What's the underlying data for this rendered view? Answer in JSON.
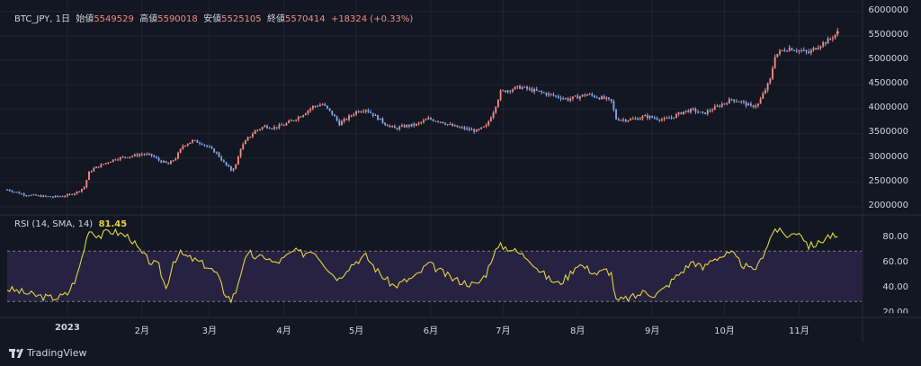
{
  "header": {
    "symbol": "BTC_JPY, 1日",
    "open_label": "始値",
    "open_value": "5549529",
    "high_label": "高値",
    "high_value": "5590018",
    "low_label": "安値",
    "low_value": "5525105",
    "close_label": "終値",
    "close_value": "5570414",
    "change": "+18324 (+0.33%)"
  },
  "rsi": {
    "title": "RSI (14, SMA, 14)",
    "value": "81.45"
  },
  "branding": {
    "name": "TradingView"
  },
  "colors": {
    "up": "#f28b82",
    "down": "#7fa7f0",
    "rsi_line": "#e3d33b",
    "rsi_band": "#2a2446",
    "background": "#131722",
    "grid": "#1f2433"
  },
  "chart_data": [
    {
      "type": "candlestick",
      "title": "BTC_JPY, 1日",
      "x_ticks": [
        "2023",
        "2月",
        "3月",
        "4月",
        "5月",
        "6月",
        "7月",
        "8月",
        "9月",
        "10月",
        "11月"
      ],
      "y_ticks": [
        "6000000",
        "5500000",
        "5000000",
        "4500000",
        "4000000",
        "3500000",
        "3000000",
        "2500000",
        "2000000"
      ],
      "ylim": [
        1850000,
        6050000
      ],
      "x_range_days": [
        -25,
        330
      ],
      "x_tick_days": [
        0,
        31,
        59,
        90,
        120,
        151,
        181,
        212,
        243,
        273,
        304
      ],
      "close_series": [
        [
          -25,
          2350000
        ],
        [
          -18,
          2250000
        ],
        [
          -12,
          2220000
        ],
        [
          -6,
          2200000
        ],
        [
          0,
          2230000
        ],
        [
          4,
          2300000
        ],
        [
          7,
          2400000
        ],
        [
          9,
          2700000
        ],
        [
          11,
          2780000
        ],
        [
          14,
          2850000
        ],
        [
          17,
          2920000
        ],
        [
          20,
          2980000
        ],
        [
          24,
          3020000
        ],
        [
          28,
          3050000
        ],
        [
          31,
          3080000
        ],
        [
          35,
          3050000
        ],
        [
          38,
          2950000
        ],
        [
          42,
          2870000
        ],
        [
          45,
          3000000
        ],
        [
          48,
          3250000
        ],
        [
          52,
          3350000
        ],
        [
          56,
          3300000
        ],
        [
          59,
          3200000
        ],
        [
          62,
          3100000
        ],
        [
          65,
          2900000
        ],
        [
          68,
          2750000
        ],
        [
          70,
          2850000
        ],
        [
          72,
          3200000
        ],
        [
          75,
          3400000
        ],
        [
          78,
          3550000
        ],
        [
          82,
          3650000
        ],
        [
          86,
          3620000
        ],
        [
          90,
          3680000
        ],
        [
          94,
          3780000
        ],
        [
          98,
          3900000
        ],
        [
          102,
          4050000
        ],
        [
          106,
          4100000
        ],
        [
          110,
          3900000
        ],
        [
          113,
          3700000
        ],
        [
          116,
          3800000
        ],
        [
          120,
          3950000
        ],
        [
          124,
          4000000
        ],
        [
          128,
          3850000
        ],
        [
          132,
          3700000
        ],
        [
          136,
          3600000
        ],
        [
          140,
          3650000
        ],
        [
          145,
          3680000
        ],
        [
          150,
          3800000
        ],
        [
          155,
          3750000
        ],
        [
          160,
          3650000
        ],
        [
          165,
          3600000
        ],
        [
          170,
          3550000
        ],
        [
          174,
          3650000
        ],
        [
          177,
          3950000
        ],
        [
          180,
          4350000
        ],
        [
          184,
          4400000
        ],
        [
          188,
          4450000
        ],
        [
          192,
          4400000
        ],
        [
          196,
          4350000
        ],
        [
          200,
          4300000
        ],
        [
          204,
          4250000
        ],
        [
          208,
          4200000
        ],
        [
          212,
          4250000
        ],
        [
          216,
          4300000
        ],
        [
          220,
          4250000
        ],
        [
          224,
          4200000
        ],
        [
          226,
          4150000
        ],
        [
          228,
          3800000
        ],
        [
          232,
          3780000
        ],
        [
          236,
          3800000
        ],
        [
          240,
          3850000
        ],
        [
          244,
          3820000
        ],
        [
          248,
          3780000
        ],
        [
          252,
          3850000
        ],
        [
          256,
          3950000
        ],
        [
          260,
          3980000
        ],
        [
          264,
          3900000
        ],
        [
          268,
          4000000
        ],
        [
          272,
          4100000
        ],
        [
          276,
          4200000
        ],
        [
          280,
          4150000
        ],
        [
          284,
          4050000
        ],
        [
          287,
          4100000
        ],
        [
          290,
          4400000
        ],
        [
          292,
          4600000
        ],
        [
          294,
          5100000
        ],
        [
          297,
          5200000
        ],
        [
          300,
          5250000
        ],
        [
          304,
          5200000
        ],
        [
          308,
          5150000
        ],
        [
          312,
          5300000
        ],
        [
          316,
          5400000
        ],
        [
          320,
          5570414
        ]
      ]
    },
    {
      "type": "line",
      "title": "RSI (14, SMA, 14)",
      "y_ticks": [
        "80.00",
        "60.00",
        "40.00",
        "20.00"
      ],
      "ylim": [
        18,
        98
      ],
      "bands": [
        30,
        70
      ],
      "series": [
        {
          "values": [
            [
              -25,
              40
            ],
            [
              -20,
              38
            ],
            [
              -14,
              35
            ],
            [
              -8,
              33
            ],
            [
              -4,
              33
            ],
            [
              0,
              36
            ],
            [
              4,
              50
            ],
            [
              7,
              72
            ],
            [
              9,
              88
            ],
            [
              11,
              84
            ],
            [
              14,
              82
            ],
            [
              17,
              86
            ],
            [
              20,
              85
            ],
            [
              23,
              83
            ],
            [
              26,
              81
            ],
            [
              30,
              70
            ],
            [
              34,
              62
            ],
            [
              38,
              58
            ],
            [
              41,
              40
            ],
            [
              44,
              62
            ],
            [
              47,
              68
            ],
            [
              50,
              65
            ],
            [
              54,
              62
            ],
            [
              58,
              58
            ],
            [
              62,
              52
            ],
            [
              65,
              38
            ],
            [
              68,
              31
            ],
            [
              70,
              38
            ],
            [
              73,
              60
            ],
            [
              76,
              68
            ],
            [
              79,
              64
            ],
            [
              82,
              66
            ],
            [
              86,
              60
            ],
            [
              90,
              64
            ],
            [
              94,
              70
            ],
            [
              98,
              68
            ],
            [
              102,
              71
            ],
            [
              106,
              62
            ],
            [
              110,
              52
            ],
            [
              113,
              48
            ],
            [
              116,
              56
            ],
            [
              120,
              62
            ],
            [
              124,
              66
            ],
            [
              128,
              56
            ],
            [
              132,
              48
            ],
            [
              136,
              42
            ],
            [
              140,
              46
            ],
            [
              145,
              50
            ],
            [
              150,
              60
            ],
            [
              155,
              54
            ],
            [
              160,
              48
            ],
            [
              165,
              45
            ],
            [
              170,
              43
            ],
            [
              174,
              52
            ],
            [
              177,
              68
            ],
            [
              180,
              74
            ],
            [
              184,
              72
            ],
            [
              188,
              68
            ],
            [
              192,
              64
            ],
            [
              196,
              55
            ],
            [
              200,
              48
            ],
            [
              204,
              44
            ],
            [
              208,
              50
            ],
            [
              212,
              60
            ],
            [
              216,
              56
            ],
            [
              220,
              52
            ],
            [
              224,
              55
            ],
            [
              226,
              52
            ],
            [
              228,
              30
            ],
            [
              232,
              32
            ],
            [
              236,
              34
            ],
            [
              240,
              38
            ],
            [
              244,
              35
            ],
            [
              248,
              40
            ],
            [
              252,
              48
            ],
            [
              256,
              55
            ],
            [
              260,
              62
            ],
            [
              264,
              56
            ],
            [
              268,
              64
            ],
            [
              272,
              66
            ],
            [
              276,
              68
            ],
            [
              280,
              60
            ],
            [
              284,
              55
            ],
            [
              287,
              58
            ],
            [
              290,
              72
            ],
            [
              292,
              80
            ],
            [
              294,
              88
            ],
            [
              297,
              84
            ],
            [
              300,
              82
            ],
            [
              304,
              86
            ],
            [
              308,
              74
            ],
            [
              312,
              76
            ],
            [
              316,
              82
            ],
            [
              320,
              81.45
            ]
          ]
        }
      ]
    }
  ]
}
